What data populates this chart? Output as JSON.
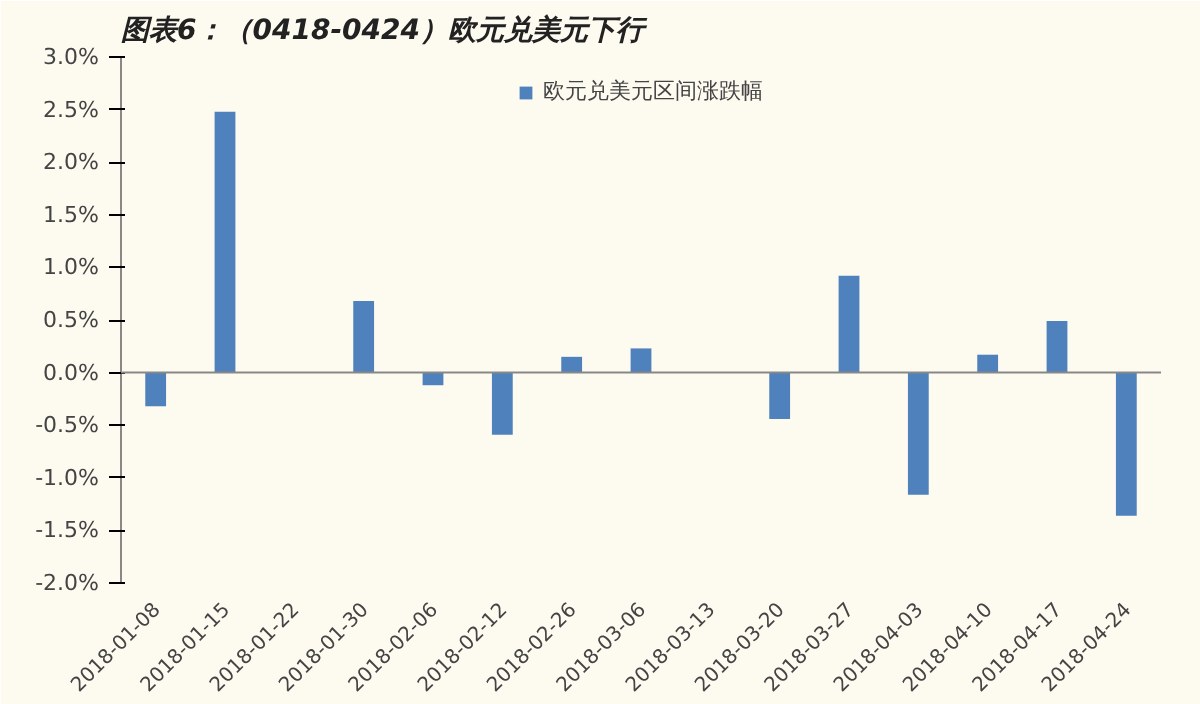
{
  "chart_data": {
    "type": "bar",
    "title": "图表6：（0418-0424）欧元兑美元下行",
    "categories": [
      "2018-01-08",
      "2018-01-15",
      "2018-01-22",
      "2018-01-30",
      "2018-02-06",
      "2018-02-12",
      "2018-02-26",
      "2018-03-06",
      "2018-03-13",
      "2018-03-20",
      "2018-03-27",
      "2018-04-03",
      "2018-04-10",
      "2018-04-17",
      "2018-04-24"
    ],
    "series": [
      {
        "name": "欧元兑美元区间涨跌幅",
        "color": "#4f81bd",
        "values": [
          -0.32,
          2.48,
          0,
          0.68,
          -0.12,
          -0.59,
          0.15,
          0.23,
          0,
          -0.44,
          0.92,
          -1.16,
          0.17,
          0.49,
          -1.36
        ]
      }
    ],
    "ylim": [
      -2,
      3
    ],
    "yticks": [
      {
        "value": -2,
        "label": "-2.0%"
      },
      {
        "value": -1.5,
        "label": "-1.5%"
      },
      {
        "value": -1,
        "label": "-1.0%"
      },
      {
        "value": -0.5,
        "label": "-0.5%"
      },
      {
        "value": 0,
        "label": "0.0%"
      },
      {
        "value": 0.5,
        "label": "0.5%"
      },
      {
        "value": 1,
        "label": "1.0%"
      },
      {
        "value": 1.5,
        "label": "1.5%"
      },
      {
        "value": 2,
        "label": "2.0%"
      },
      {
        "value": 2.5,
        "label": "2.5%"
      },
      {
        "value": 3,
        "label": "3.0%"
      }
    ],
    "legend": "top"
  }
}
